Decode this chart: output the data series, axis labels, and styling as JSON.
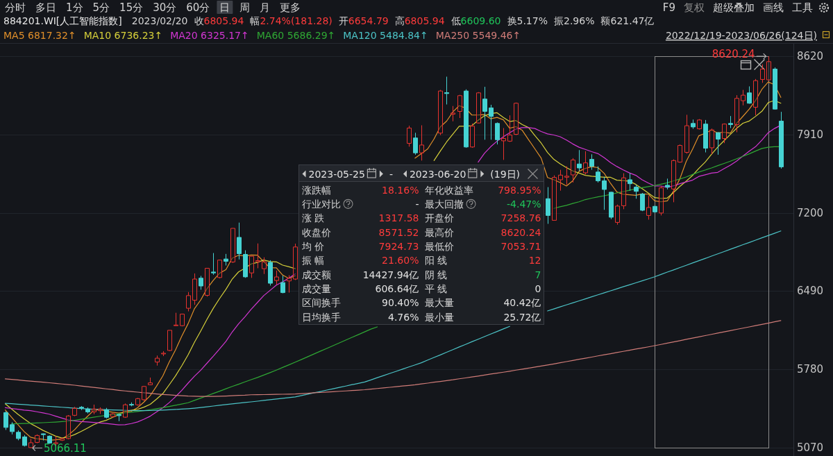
{
  "chart_data": [
    {
      "type": "other",
      "annotations": [
        "分时",
        "多日",
        "1分",
        "5分",
        "15分",
        "30分",
        "60分",
        "日",
        "周",
        "月",
        "更多",
        "F9",
        "复权",
        "超级叠加",
        "画线",
        "工具"
      ]
    },
    {
      "type": "candlestick",
      "title": "884201.WI[人工智能指数]",
      "subtitle": "2022/12/19-2023/06/26(124日)",
      "categories": [
        null,
        null,
        null,
        null,
        null,
        null,
        null,
        null,
        null,
        null,
        null,
        null,
        null,
        null,
        null,
        null,
        null,
        null,
        null,
        null,
        null,
        null,
        null,
        null,
        null,
        null,
        null,
        null,
        null,
        null,
        null,
        null,
        null,
        null,
        null,
        null,
        null,
        null,
        null,
        null,
        null,
        null,
        null,
        null,
        null,
        null,
        null,
        null,
        null,
        null,
        null,
        null,
        null,
        null,
        null,
        null,
        null,
        null,
        null,
        null,
        null,
        null,
        null,
        null,
        null,
        null,
        null,
        null,
        null,
        null,
        null,
        null,
        null,
        null,
        null,
        null,
        null,
        null,
        null,
        null,
        null,
        null,
        null,
        null,
        null,
        null,
        null,
        null,
        null,
        null,
        null,
        null,
        null,
        null,
        null,
        null,
        null,
        null,
        null,
        null,
        null,
        null,
        null,
        null,
        null,
        null,
        null,
        null,
        null,
        null,
        null,
        null,
        null,
        null,
        null,
        null,
        null,
        null,
        null,
        null,
        null,
        null,
        null,
        null
      ],
      "ohlc": [
        [
          5388,
          5400,
          5230,
          5253
        ],
        [
          5278,
          5300,
          5190,
          5215
        ],
        [
          5209,
          5226,
          5136,
          5152
        ],
        [
          5167,
          5184,
          5080,
          5089
        ],
        [
          5070,
          5150,
          5066.11,
          5114
        ],
        [
          5117,
          5190,
          5110,
          5180
        ],
        [
          5195,
          5198,
          5135,
          5188
        ],
        [
          5174,
          5180,
          5105,
          5111
        ],
        [
          5106,
          5174,
          5085,
          5114
        ],
        [
          5137,
          5160,
          5130,
          5152
        ],
        [
          5152,
          5365,
          5145,
          5357
        ],
        [
          5363,
          5440,
          5355,
          5426
        ],
        [
          5436,
          5447,
          5410,
          5428
        ],
        [
          5420,
          5435,
          5380,
          5394
        ],
        [
          5394,
          5460,
          5373,
          5420
        ],
        [
          5405,
          5435,
          5375,
          5420
        ],
        [
          5414,
          5430,
          5335,
          5345
        ],
        [
          5352,
          5385,
          5340,
          5377
        ],
        [
          5370,
          5380,
          5310,
          5360
        ],
        [
          5346,
          5470,
          5340,
          5458
        ],
        [
          5462,
          5480,
          5445,
          5458
        ],
        [
          5458,
          5520,
          5450,
          5514
        ],
        [
          5504,
          5630,
          5495,
          5625
        ],
        [
          5640,
          5705,
          5636,
          5657
        ],
        [
          5846,
          5905,
          5814,
          5881
        ],
        [
          5920,
          5945,
          5900,
          5926
        ],
        [
          5951,
          6135,
          5945,
          6134
        ],
        [
          6178,
          6293,
          6176,
          6182
        ],
        [
          6176,
          6285,
          6170,
          6281
        ],
        [
          6334,
          6481,
          6306,
          6449
        ],
        [
          6407,
          6650,
          6365,
          6599
        ],
        [
          6607,
          6628,
          6502,
          6536
        ],
        [
          6451,
          6700,
          6440,
          6697
        ],
        [
          6663,
          6835,
          6638,
          6655
        ],
        [
          6613,
          6775,
          6605,
          6771
        ],
        [
          6781,
          6827,
          6722,
          6760
        ],
        [
          6754,
          7060,
          6745,
          7059
        ],
        [
          6977,
          7111,
          6777,
          6829
        ],
        [
          6823,
          6860,
          6610,
          6619
        ],
        [
          6654.79,
          6805.94,
          6609.6,
          6805.94
        ],
        [
          6756,
          6922,
          6697,
          6766
        ],
        [
          6693,
          6796,
          6645,
          6756
        ],
        [
          6750,
          6770,
          6540,
          6561
        ],
        [
          6586,
          6676,
          6550,
          6618
        ],
        [
          6567,
          6630,
          6470,
          6476
        ],
        [
          6582,
          6634,
          6476,
          6607
        ],
        [
          6599,
          6920,
          6590,
          6890
        ],
        null,
        null,
        null,
        null,
        null,
        null,
        null,
        null,
        null,
        null,
        null,
        null,
        null,
        null,
        null,
        null,
        null,
        [
          7830,
          7990,
          7800,
          7969
        ],
        [
          7879,
          7926,
          7727,
          7744
        ],
        [
          7744,
          7994,
          7674,
          7815
        ],
        null,
        null,
        [
          7923,
          8315,
          7905,
          8305
        ],
        [
          8290,
          8435,
          8183,
          8282
        ],
        [
          8095,
          8169,
          8030,
          8105
        ],
        [
          8120,
          8270,
          8060,
          8263
        ],
        [
          8305,
          8320,
          7790,
          7797
        ],
        [
          7797,
          8010,
          7790,
          7986
        ],
        [
          8015,
          8295,
          8010,
          8288
        ],
        [
          8232,
          8343,
          7863,
          8120
        ],
        [
          8152,
          8180,
          7863,
          8074
        ],
        [
          8011,
          8020,
          7820,
          7863
        ],
        [
          7853,
          7969,
          7680,
          7874
        ],
        [
          7850,
          8084,
          7843,
          7906
        ],
        [
          7912,
          8200,
          7905,
          8194
        ],
        null,
        null,
        null,
        null,
        [
          7328,
          7433,
          7100,
          7176
        ],
        [
          7132,
          7540,
          7130,
          7521
        ],
        [
          7500,
          7590,
          7401,
          7542
        ],
        [
          7523,
          7622,
          7454,
          7532
        ],
        [
          7544,
          7696,
          7475,
          7679
        ],
        [
          7643,
          7769,
          7580,
          7607
        ],
        [
          7563,
          7759,
          7548,
          7653
        ],
        [
          7685,
          7731,
          7590,
          7622
        ],
        [
          7570,
          7622,
          7475,
          7490
        ],
        [
          7490,
          7527,
          7227,
          7412
        ],
        [
          7387,
          7391,
          7143,
          7160
        ],
        [
          7113,
          7275,
          7092,
          7261
        ],
        [
          7264,
          7559,
          7233,
          7517
        ],
        [
          7500,
          7559,
          7401,
          7464
        ],
        [
          7433,
          7454,
          7328,
          7395
        ],
        [
          7370,
          7380,
          7215,
          7223
        ],
        [
          7176,
          7353,
          7138,
          7248
        ],
        [
          7258.76,
          7265,
          7200,
          7208
        ],
        [
          7198,
          7443,
          7176,
          7426
        ],
        [
          7450,
          7510,
          7412,
          7433
        ],
        [
          7416,
          7685,
          7296,
          7674
        ],
        [
          7660,
          7820,
          7655,
          7811
        ],
        [
          7748,
          8089,
          7737,
          7990
        ],
        [
          8011,
          8046,
          7962,
          7979
        ],
        [
          7962,
          8050,
          7955,
          8042
        ],
        [
          8005,
          8042,
          7748,
          7786
        ],
        [
          7790,
          7964,
          7733,
          7952
        ],
        [
          7927,
          7931,
          7727,
          7868
        ],
        [
          7874,
          8011,
          7832,
          8005
        ],
        [
          8011,
          8078,
          7969,
          8000
        ],
        [
          8000,
          8267,
          7931,
          8238
        ],
        [
          8217,
          8315,
          8175,
          8267
        ],
        [
          8288,
          8347,
          8189,
          8194
        ],
        [
          8158,
          8414,
          8084,
          8399
        ],
        [
          8410,
          8547,
          8379,
          8504
        ],
        [
          8406,
          8620.24,
          8400,
          8571.52
        ],
        [
          8504,
          8519,
          8137,
          8141
        ],
        [
          8032,
          8116,
          7601,
          7617
        ]
      ],
      "series": [
        {
          "name": "MA5 6817.32↑",
          "type": "line",
          "color": "#e08f2a",
          "values": [
            5411,
            5345,
            5280,
            5215,
            5165,
            5150,
            5145,
            5136,
            5141,
            5149,
            5184,
            5232,
            5295,
            5351,
            5405,
            5418,
            5401,
            5391,
            5384,
            5392,
            5400,
            5433,
            5483,
            5542,
            5627,
            5721,
            5845,
            5956,
            6081,
            6194,
            6329,
            6409,
            6512,
            6587,
            6652,
            6684,
            6788,
            6815,
            6808,
            6817.32,
            6816,
            6755,
            6702,
            6701,
            6635,
            6604,
            6630,
            null,
            null,
            null,
            null,
            null,
            null,
            null,
            null,
            null,
            null,
            null,
            null,
            null,
            null,
            null,
            null,
            null,
            null,
            7696,
            7737,
            7780,
            7870,
            7980,
            8032,
            8116,
            8172,
            8150,
            8087,
            8088,
            8091,
            8053,
            8066,
            8044,
            7967,
            7982,
            7948,
            7863,
            7780,
            7696,
            7520,
            7500,
            7475,
            7443,
            7490,
            7576,
            7603,
            7619,
            7610,
            7557,
            7467,
            7389,
            7368,
            7363,
            7359,
            7372,
            7369,
            7308,
            7300,
            7308,
            7398,
            7510,
            7667,
            7777,
            7899,
            7922,
            7950,
            7925,
            7931,
            7922,
            8013,
            8076,
            8141,
            8220,
            8320,
            8387,
            8362,
            8247
          ]
        },
        {
          "name": "MA10 6736.23↑",
          "type": "line",
          "color": "#d6d03a",
          "values": [
            5468,
            5420,
            5373,
            5330,
            5289,
            5258,
            5226,
            5200,
            5174,
            5157,
            5167,
            5188,
            5216,
            5246,
            5277,
            5301,
            5317,
            5343,
            5368,
            5399,
            5409,
            5417,
            5437,
            5463,
            5510,
            5560,
            5639,
            5720,
            5812,
            5911,
            6025,
            6127,
            6234,
            6334,
            6423,
            6506,
            6599,
            6664,
            6697,
            6736.23,
            6750,
            6772,
            6758,
            6755,
            6725,
            6710,
            6693,
            null,
            null,
            null,
            null,
            null,
            null,
            null,
            null,
            null,
            null,
            null,
            null,
            null,
            null,
            null,
            null,
            null,
            null,
            null,
            null,
            null,
            7674,
            7760,
            7843,
            7915,
            7986,
            7986,
            7990,
            8040,
            8080,
            8100,
            8108,
            8065,
            8028,
            8037,
            8000,
            7973,
            7900,
            7832,
            7748,
            7685,
            7645,
            7610,
            7580,
            7560,
            7540,
            7532,
            7527,
            7523,
            7522,
            7496,
            7493,
            7487,
            7458,
            7420,
            7379,
            7338,
            7331,
            7334,
            7385,
            7440,
            7487,
            7539,
            7603,
            7660,
            7730,
            7796,
            7854,
            7911,
            7967,
            8013,
            8033,
            8075,
            8121,
            8200,
            8219,
            8194
          ]
        },
        {
          "name": "MA20 6325.17↑",
          "type": "line",
          "color": "#d236d2",
          "values": [
            5432,
            5425,
            5418,
            5410,
            5405,
            5395,
            5385,
            5373,
            5355,
            5338,
            5320,
            5312,
            5306,
            5303,
            5298,
            5294,
            5289,
            5282,
            5276,
            5278,
            5288,
            5303,
            5327,
            5355,
            5393,
            5431,
            5478,
            5531,
            5590,
            5655,
            5717,
            5772,
            5836,
            5899,
            5966,
            6033,
            6119,
            6192,
            6255,
            6325.17,
            6387,
            6449,
            6496,
            6544,
            6574,
            6608,
            6646,
            null,
            null,
            null,
            null,
            null,
            null,
            null,
            null,
            null,
            null,
            null,
            null,
            null,
            null,
            null,
            null,
            null,
            null,
            null,
            null,
            null,
            null,
            null,
            null,
            null,
            null,
            null,
            null,
            7660,
            7740,
            7800,
            7850,
            7890,
            7927,
            7960,
            7973,
            7973,
            7965,
            7937,
            7916,
            7906,
            7890,
            7860,
            7825,
            7795,
            7775,
            7755,
            7737,
            7700,
            7655,
            7620,
            7590,
            7562,
            7540,
            7500,
            7470,
            7443,
            7443,
            7430,
            7445,
            7464,
            7480,
            7496,
            7530,
            7545,
            7560,
            7567,
            7600,
            7632,
            7670,
            7715,
            7760,
            7800,
            7860,
            7927,
            7965,
            7995
          ]
        },
        {
          "name": "MA60 5686.29↑",
          "type": "line",
          "color": "#2fa834",
          "values": [
            null,
            5285,
            5287,
            5289,
            5291,
            5293,
            5296,
            5299,
            5302,
            5306,
            5310,
            5318,
            5327,
            5336,
            5345,
            5354,
            5363,
            5370,
            5377,
            5384,
            5391,
            5398,
            5405,
            5414,
            5423,
            5432,
            5443,
            5454,
            5465,
            5477,
            5498,
            5519,
            5540,
            5561,
            5582,
            5604,
            5625,
            5645,
            5666,
            5686.29,
            5706,
            5728,
            5750,
            5773,
            5797,
            5821,
            5845,
            5870,
            5895,
            5920,
            5945,
            5970,
            5995,
            6020,
            6045,
            6070,
            6095,
            6120,
            6145,
            6165,
            null,
            null,
            null,
            null,
            null,
            null,
            null,
            null,
            null,
            null,
            null,
            null,
            null,
            null,
            null,
            null,
            null,
            null,
            null,
            null,
            null,
            null,
            null,
            null,
            null,
            null,
            null,
            7240,
            7255,
            7268,
            7285,
            7300,
            7320,
            7333,
            7345,
            7355,
            7367,
            7380,
            7392,
            7405,
            7418,
            7428,
            7438,
            7448,
            7460,
            7472,
            7490,
            7507,
            7525,
            7548,
            7570,
            7588,
            7607,
            7628,
            7648,
            7668,
            7690,
            7712,
            7735,
            7760,
            7784,
            7795,
            7800,
            7800
          ]
        },
        {
          "name": "MA120 5484.84↑",
          "type": "line",
          "color": "#4cc3c6",
          "values": [
            5472,
            5468,
            5464,
            5460,
            5456,
            5452,
            5448,
            5444,
            5440,
            5436,
            5432,
            5428,
            5424,
            5421,
            5418,
            5416,
            5414,
            5412,
            5410,
            5408,
            5406,
            5405,
            5405,
            5406,
            5408,
            5410,
            5413,
            5416,
            5419,
            5423,
            5428,
            5434,
            5440,
            5447,
            5454,
            5461,
            5467,
            5473,
            5479,
            5484.84,
            5491,
            5498,
            5504,
            5511,
            5517,
            5524,
            5530,
            5542,
            5555,
            5567,
            5579,
            5592,
            5604,
            5616,
            5628,
            5641,
            5653,
            5665,
            5684,
            5704,
            5723,
            5743,
            5762,
            5782,
            5801,
            5820,
            5840,
            5864,
            5888,
            5911,
            5935,
            5959,
            5983,
            6006,
            6030,
            6053,
            6077,
            6100,
            6123,
            6147,
            6170,
            null,
            null,
            null,
            null,
            null,
            6310,
            6328,
            6347,
            6365,
            6383,
            6401,
            6419,
            6438,
            6456,
            6474,
            6492,
            6510,
            6529,
            6547,
            6565,
            6583,
            6601,
            6620,
            6641,
            6662,
            6682,
            6703,
            6724,
            6745,
            6765,
            6786,
            6807,
            6828,
            6848,
            6869,
            6890,
            6911,
            6931,
            6952,
            6973,
            6994,
            7014,
            7035
          ]
        },
        {
          "name": "MA250 5549.46↑",
          "type": "line",
          "color": "#d07c78",
          "values": [
            5694,
            5689,
            5684,
            5678,
            5673,
            5668,
            5663,
            5658,
            5652,
            5647,
            5642,
            5636,
            5629,
            5623,
            5616,
            5610,
            5603,
            5597,
            5590,
            5584,
            5579,
            5573,
            5568,
            5563,
            5557,
            5552,
            5548,
            5544,
            5541,
            5537,
            5536,
            5535,
            5535,
            5535,
            5536,
            5538,
            5541,
            5544,
            5546,
            5549.46,
            5550,
            5551,
            5552,
            5553,
            5554,
            5555,
            5556,
            5560,
            5563,
            5567,
            5570,
            5574,
            5577,
            5581,
            5584,
            5588,
            5591,
            5595,
            5601,
            5606,
            5612,
            5617,
            5623,
            5629,
            5634,
            5640,
            5648,
            5655,
            5663,
            5670,
            5678,
            5685,
            5694,
            5702,
            5711,
            5719,
            5728,
            5737,
            5745,
            5754,
            5763,
            5773,
            5782,
            5791,
            5800,
            5810,
            5819,
            5829,
            5840,
            5850,
            5860,
            5871,
            5881,
            5891,
            5902,
            5912,
            5922,
            5933,
            5943,
            5953,
            5964,
            5974,
            5984,
            5995,
            6006,
            6018,
            6029,
            6040,
            6052,
            6063,
            6074,
            6086,
            6097,
            6109,
            6120,
            6131,
            6143,
            6154,
            6165,
            6177,
            6188,
            6199,
            6211,
            6222
          ]
        }
      ],
      "ylim": [
        5000,
        8715
      ],
      "yticks": [
        5070,
        5780,
        6490,
        7200,
        7910,
        8620
      ],
      "grid": "y",
      "legend": "top left",
      "annotations": [
        "8620.24",
        "5066.11",
        "2023/02/20",
        "收6805.94",
        "幅2.74%(181.28)",
        "开6654.79",
        "高6805.94",
        "低6609.60",
        "换5.17%",
        "振2.96%",
        "额621.47亿"
      ]
    },
    {
      "type": "other",
      "annotations": [
        "2023-05-25",
        "-",
        "2023-06-20",
        "(19日)",
        "涨跌幅",
        "18.16%",
        "年化收益率",
        "798.95%",
        "行业对比",
        "-",
        "最大回撤",
        "-4.47%",
        "涨 跌",
        "1317.58",
        "开盘价",
        "7258.76",
        "收盘价",
        "8571.52",
        "最高价",
        "8620.24",
        "均 价",
        "7924.73",
        "最低价",
        "7053.71",
        "振 幅",
        "21.60%",
        "阳 线",
        "12",
        "成交额",
        "14427.94亿",
        "阴 线",
        "7",
        "成交量",
        "606.64亿",
        "平 线",
        "0",
        "区间换手",
        "90.40%",
        "最大量",
        "40.42亿",
        "日均换手",
        "4.76%",
        "最小量",
        "25.72亿"
      ]
    }
  ]
}
